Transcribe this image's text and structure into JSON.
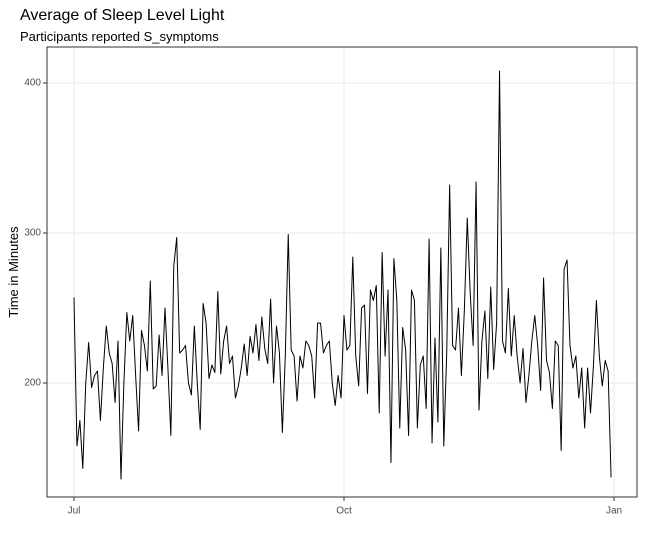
{
  "chart_data": {
    "type": "line",
    "title": "Average of Sleep Level Light",
    "subtitle": "Participants reported S_symptoms",
    "y_label": "Time in Minutes",
    "color": "#000000",
    "grid": true,
    "ylim": [
      124,
      424
    ],
    "yticks": [
      200,
      300,
      400
    ],
    "categories": [
      "Jul",
      null,
      null,
      null,
      null,
      null,
      null,
      null,
      null,
      null,
      null,
      null,
      null,
      null,
      null,
      null,
      null,
      null,
      null,
      null,
      null,
      null,
      null,
      null,
      null,
      null,
      null,
      null,
      null,
      null,
      null,
      null,
      null,
      null,
      null,
      null,
      null,
      null,
      null,
      null,
      null,
      null,
      null,
      null,
      null,
      null,
      null,
      null,
      null,
      null,
      null,
      null,
      null,
      null,
      null,
      null,
      null,
      null,
      null,
      null,
      null,
      null,
      null,
      null,
      null,
      null,
      null,
      null,
      null,
      null,
      null,
      null,
      null,
      null,
      null,
      null,
      null,
      null,
      null,
      null,
      null,
      null,
      null,
      null,
      null,
      null,
      null,
      null,
      null,
      null,
      null,
      null,
      "Oct",
      null,
      null,
      null,
      null,
      null,
      null,
      null,
      null,
      null,
      null,
      null,
      null,
      null,
      null,
      null,
      null,
      null,
      null,
      null,
      null,
      null,
      null,
      null,
      null,
      null,
      null,
      null,
      null,
      null,
      null,
      null,
      null,
      null,
      null,
      null,
      null,
      null,
      null,
      null,
      null,
      null,
      null,
      null,
      null,
      null,
      null,
      null,
      null,
      null,
      null,
      null,
      null,
      null,
      null,
      null,
      null,
      null,
      null,
      null,
      null,
      null,
      null,
      null,
      null,
      null,
      null,
      null,
      null,
      null,
      null,
      null,
      null,
      null,
      null,
      null,
      null,
      null,
      null,
      null,
      null,
      null,
      null,
      null,
      null,
      null,
      null,
      null,
      null,
      null,
      null,
      null,
      "Jan"
    ],
    "values": [
      257,
      158,
      175,
      143,
      200,
      227,
      197,
      205,
      208,
      175,
      210,
      238,
      220,
      213,
      187,
      228,
      136,
      200,
      247,
      228,
      245,
      205,
      168,
      235,
      225,
      208,
      268,
      196,
      198,
      232,
      205,
      250,
      210,
      165,
      278,
      297,
      220,
      222,
      225,
      200,
      192,
      238,
      200,
      169,
      253,
      240,
      203,
      212,
      207,
      261,
      206,
      228,
      238,
      213,
      218,
      190,
      198,
      210,
      226,
      205,
      231,
      220,
      239,
      215,
      244,
      223,
      213,
      256,
      200,
      238,
      220,
      167,
      218,
      299,
      222,
      218,
      188,
      218,
      210,
      228,
      225,
      218,
      190,
      240,
      240,
      220,
      225,
      228,
      200,
      185,
      205,
      190,
      245,
      222,
      225,
      284,
      218,
      198,
      250,
      252,
      193,
      262,
      255,
      265,
      180,
      287,
      218,
      262,
      147,
      283,
      255,
      170,
      237,
      222,
      165,
      262,
      255,
      170,
      212,
      218,
      183,
      296,
      160,
      230,
      174,
      290,
      158,
      220,
      332,
      225,
      222,
      250,
      205,
      248,
      310,
      260,
      225,
      334,
      182,
      228,
      248,
      203,
      264,
      209,
      240,
      408,
      228,
      220,
      263,
      218,
      245,
      218,
      200,
      223,
      187,
      205,
      228,
      245,
      225,
      195,
      270,
      215,
      207,
      183,
      228,
      225,
      155,
      276,
      282,
      225,
      210,
      218,
      190,
      210,
      170,
      210,
      180,
      212,
      255,
      218,
      198,
      215,
      208,
      137,
      null
    ]
  }
}
